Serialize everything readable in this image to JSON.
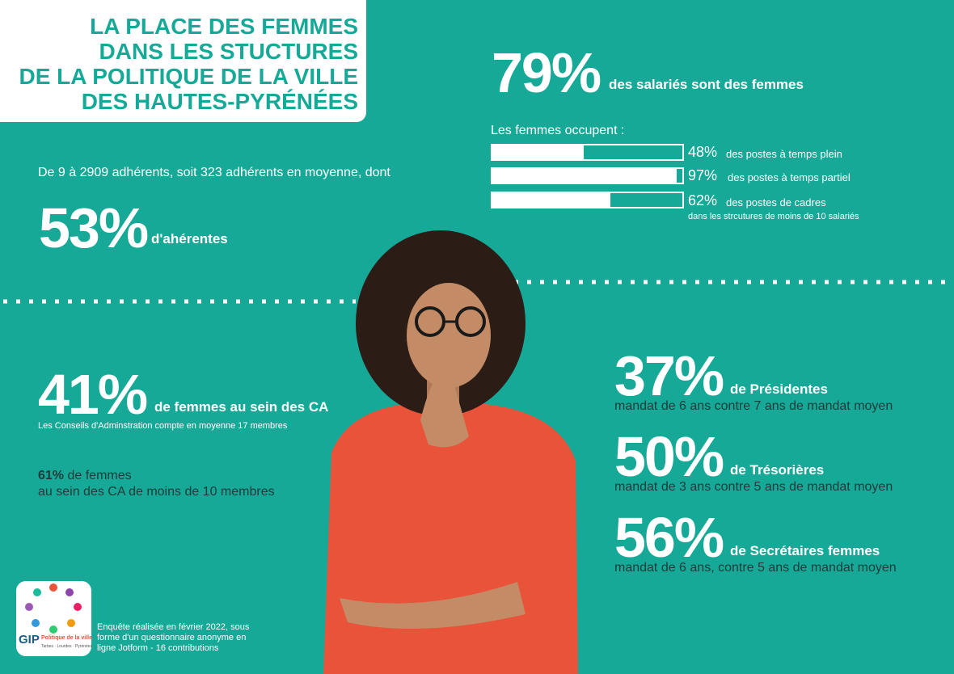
{
  "title": {
    "lines": [
      "LA PLACE DES FEMMES",
      "DANS LES STUCTURES",
      "DE LA POLITIQUE DE LA VILLE",
      "DES HAUTES-PYRÉNÉES"
    ]
  },
  "members": {
    "intro": "De 9 à 2909 adhérents, soit 323 adhérents en moyenne, dont",
    "stat": "53%",
    "label": "d'ahérentes"
  },
  "employees": {
    "stat": "79%",
    "label": "des salariés sont des femmes",
    "intro": "Les femmes occupent :",
    "bars": [
      {
        "value": 48,
        "label": "48%",
        "text": "des postes à temps plein"
      },
      {
        "value": 97,
        "label": "97%",
        "text": "des postes à temps partiel"
      },
      {
        "value": 62,
        "label": "62%",
        "text": "des postes de cadres",
        "note": "dans les strcutures de moins de 10 salariés"
      }
    ]
  },
  "boards": {
    "stat": "41%",
    "label": "de femmes au sein des CA",
    "note": "Les Conseils d'Adminstration compte en moyenne 17 membres",
    "sub_stat": "61%",
    "sub_label": "de femmes",
    "sub_line": "au sein des CA de moins de 10 membres"
  },
  "roles": [
    {
      "stat": "37%",
      "label": "de Présidentes",
      "detail": "mandat de 6 ans contre 7 ans de mandat moyen"
    },
    {
      "stat": "50%",
      "label": "de Trésorières",
      "detail": "mandat de 3 ans contre 5 ans de mandat moyen"
    },
    {
      "stat": "56%",
      "label": "de Secrétaires femmes",
      "detail": "mandat de 6 ans, contre 5 ans de mandat moyen"
    }
  ],
  "logo": {
    "name": "GIP",
    "subtitle": "Politique de la ville",
    "places": "Tarbes · Lourdes · Pyrénées"
  },
  "footer": "Enquête réalisée en février 2022, sous forme d'un questionnaire anonyme en ligne Jotform - 16 contributions"
}
